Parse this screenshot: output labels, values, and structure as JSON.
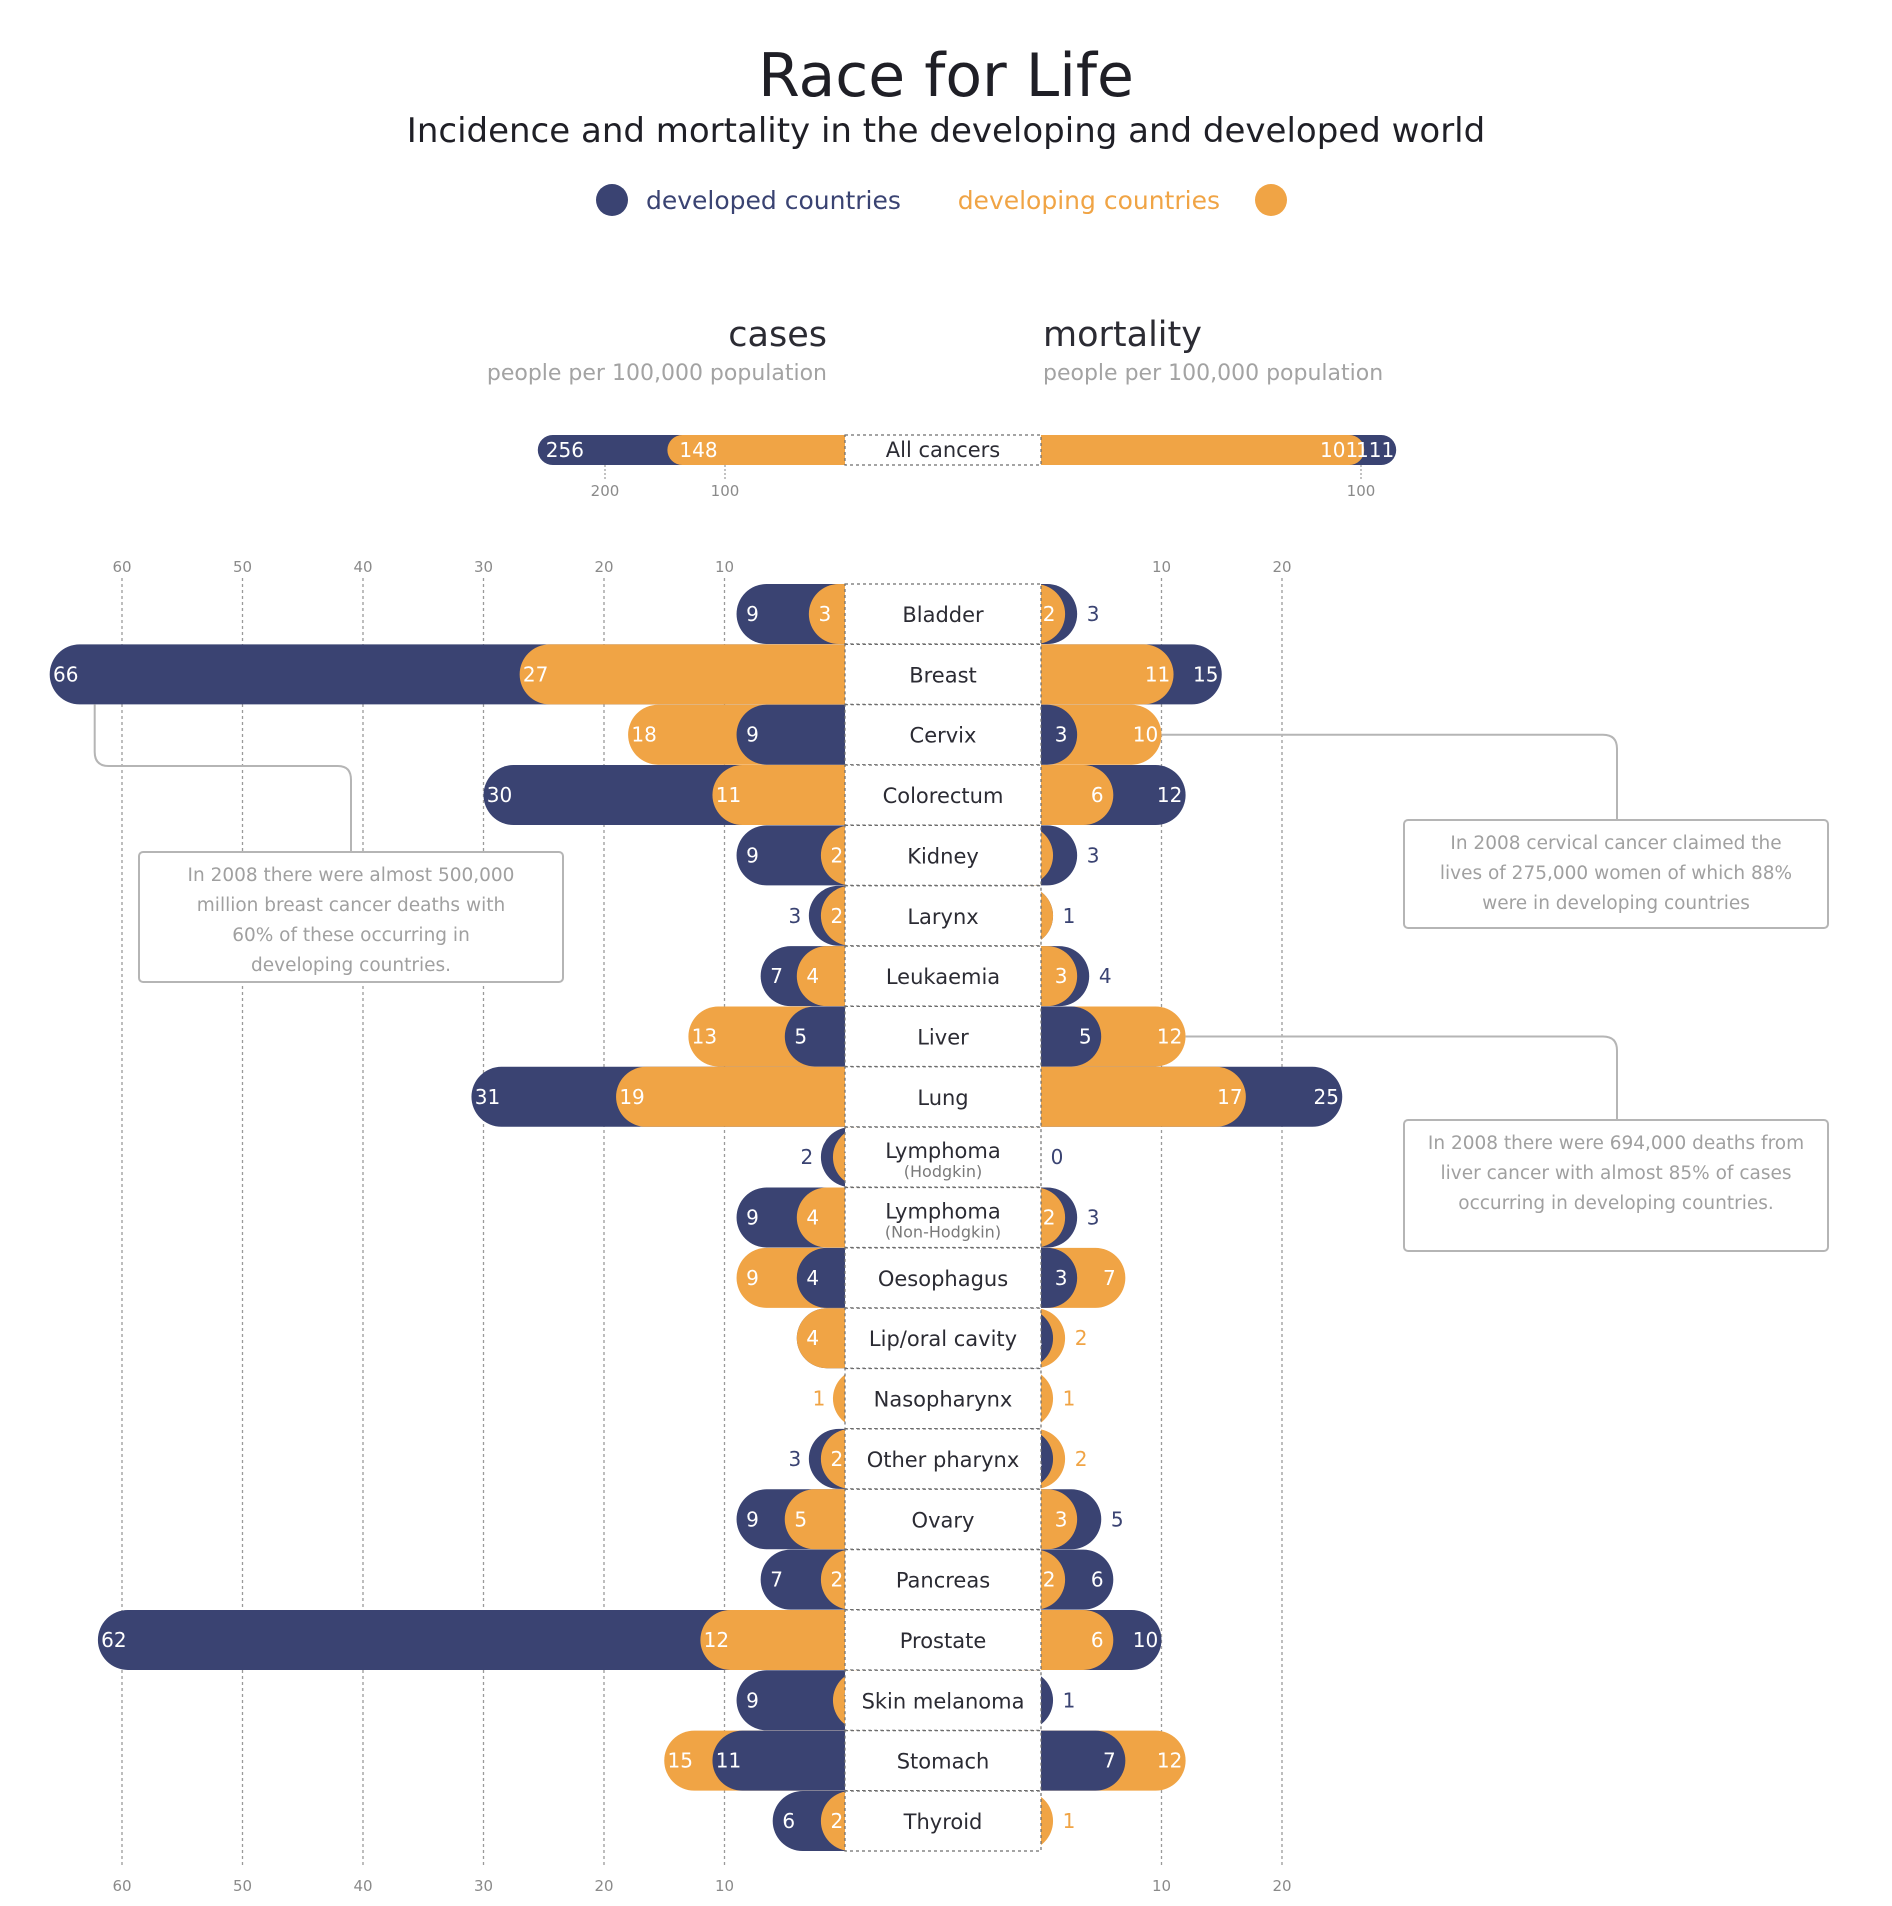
{
  "chart_data": {
    "type": "bar",
    "title": "Race for Life",
    "subtitle": "Incidence and mortality in the developing and developed world",
    "legend": [
      {
        "label": "developed countries",
        "color": "#3a4372"
      },
      {
        "label": "developing countries",
        "color": "#f0a445"
      }
    ],
    "legend_placement": "top-center",
    "colors": {
      "developed": "#3a4372",
      "developing": "#f0a445"
    },
    "panels": {
      "cases": {
        "title": "cases",
        "unit": "people per 100,000 population"
      },
      "mortality": {
        "title": "mortality",
        "unit": "people per 100,000 population"
      }
    },
    "all_cancers": {
      "category": "All cancers",
      "cases": {
        "developed": 256,
        "developing": 148
      },
      "mortality": {
        "developed": 111,
        "developing": 101
      },
      "cases_ticks": [
        "200",
        "100"
      ],
      "mortality_ticks": [
        "100"
      ]
    },
    "cases_ticks": [
      "60",
      "50",
      "40",
      "30",
      "20",
      "10"
    ],
    "mortality_ticks": [
      "10",
      "20"
    ],
    "cases_xlim": [
      0,
      70
    ],
    "mortality_xlim": [
      0,
      28
    ],
    "grid": true,
    "categories": [
      {
        "name": "Bladder",
        "note": "",
        "cases": {
          "developed": 9,
          "developing": 3
        },
        "mortality": {
          "developed": 3,
          "developing": 2
        }
      },
      {
        "name": "Breast",
        "note": "",
        "cases": {
          "developed": 66,
          "developing": 27
        },
        "mortality": {
          "developed": 15,
          "developing": 11
        }
      },
      {
        "name": "Cervix",
        "note": "",
        "cases": {
          "developed": 9,
          "developing": 18
        },
        "mortality": {
          "developed": 3,
          "developing": 10
        }
      },
      {
        "name": "Colorectum",
        "note": "",
        "cases": {
          "developed": 30,
          "developing": 11
        },
        "mortality": {
          "developed": 12,
          "developing": 6
        }
      },
      {
        "name": "Kidney",
        "note": "",
        "cases": {
          "developed": 9,
          "developing": 2
        },
        "mortality": {
          "developed": 3,
          "developing": 1
        }
      },
      {
        "name": "Larynx",
        "note": "",
        "cases": {
          "developed": 3,
          "developing": 2
        },
        "mortality": {
          "developed": 1,
          "developing": 1
        }
      },
      {
        "name": "Leukaemia",
        "note": "",
        "cases": {
          "developed": 7,
          "developing": 4
        },
        "mortality": {
          "developed": 4,
          "developing": 3
        }
      },
      {
        "name": "Liver",
        "note": "",
        "cases": {
          "developed": 5,
          "developing": 13
        },
        "mortality": {
          "developed": 5,
          "developing": 12
        }
      },
      {
        "name": "Lung",
        "note": "",
        "cases": {
          "developed": 31,
          "developing": 19
        },
        "mortality": {
          "developed": 25,
          "developing": 17
        }
      },
      {
        "name": "Lymphoma",
        "note": "(Hodgkin)",
        "cases": {
          "developed": 2,
          "developing": 1
        },
        "mortality": {
          "developed": 0,
          "developing": 0
        }
      },
      {
        "name": "Lymphoma",
        "note": "(Non-Hodgkin)",
        "cases": {
          "developed": 9,
          "developing": 4
        },
        "mortality": {
          "developed": 3,
          "developing": 2
        }
      },
      {
        "name": "Oesophagus",
        "note": "",
        "cases": {
          "developed": 4,
          "developing": 9
        },
        "mortality": {
          "developed": 3,
          "developing": 7
        }
      },
      {
        "name": "Lip/oral cavity",
        "note": "",
        "cases": {
          "developed": 4,
          "developing": 4
        },
        "mortality": {
          "developed": 1,
          "developing": 2
        }
      },
      {
        "name": "Nasopharynx",
        "note": "",
        "cases": {
          "developed": 0,
          "developing": 1
        },
        "mortality": {
          "developed": 0,
          "developing": 1
        }
      },
      {
        "name": "Other pharynx",
        "note": "",
        "cases": {
          "developed": 3,
          "developing": 2
        },
        "mortality": {
          "developed": 1,
          "developing": 2
        }
      },
      {
        "name": "Ovary",
        "note": "",
        "cases": {
          "developed": 9,
          "developing": 5
        },
        "mortality": {
          "developed": 5,
          "developing": 3
        }
      },
      {
        "name": "Pancreas",
        "note": "",
        "cases": {
          "developed": 7,
          "developing": 2
        },
        "mortality": {
          "developed": 6,
          "developing": 2
        }
      },
      {
        "name": "Prostate",
        "note": "",
        "cases": {
          "developed": 62,
          "developing": 12
        },
        "mortality": {
          "developed": 10,
          "developing": 6
        }
      },
      {
        "name": "Skin melanoma",
        "note": "",
        "cases": {
          "developed": 9,
          "developing": 1
        },
        "mortality": {
          "developed": 1,
          "developing": 0
        }
      },
      {
        "name": "Stomach",
        "note": "",
        "cases": {
          "developed": 11,
          "developing": 15
        },
        "mortality": {
          "developed": 7,
          "developing": 12
        }
      },
      {
        "name": "Thyroid",
        "note": "",
        "cases": {
          "developed": 6,
          "developing": 2
        },
        "mortality": {
          "developed": 0,
          "developing": 1
        }
      }
    ],
    "annotations": [
      {
        "category": "Breast",
        "text": [
          "In 2008 there were almost 500,000",
          "million breast cancer deaths with",
          "60% of these occurring in",
          "developing countries."
        ]
      },
      {
        "category": "Cervix",
        "text": [
          "In 2008 cervical cancer claimed the",
          "lives of 275,000 women of which 88%",
          "were in developing countries"
        ]
      },
      {
        "category": "Liver",
        "text": [
          "In 2008 there were 694,000 deaths from",
          "liver cancer with almost 85% of cases",
          "occurring in developing countries."
        ]
      }
    ]
  }
}
